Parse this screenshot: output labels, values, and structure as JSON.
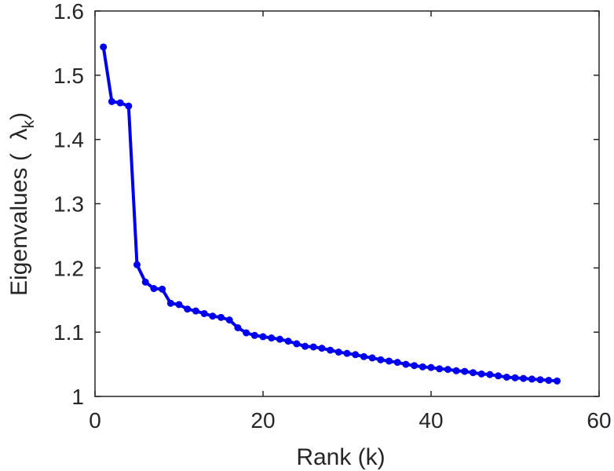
{
  "chart_data": {
    "type": "line",
    "title": "",
    "xlabel": "Rank (k)",
    "ylabel": "Eigenvalues (  λk)",
    "ylabel_parts": {
      "before": "Eigenvalues (  ",
      "symbol": "λ",
      "subscript": "k",
      "after": ")"
    },
    "xlim": [
      0,
      60
    ],
    "ylim": [
      1,
      1.6
    ],
    "xticks": [
      0,
      20,
      40,
      60
    ],
    "yticks": [
      1,
      1.1,
      1.2,
      1.3,
      1.4,
      1.5,
      1.6
    ],
    "xtick_labels": [
      "0",
      "20",
      "40",
      "60"
    ],
    "ytick_labels": [
      "1",
      "1.1",
      "1.2",
      "1.3",
      "1.4",
      "1.5",
      "1.6"
    ],
    "grid": false,
    "series": [
      {
        "color": "#0000ee",
        "marker": "circle",
        "points": [
          [
            1,
            1.544
          ],
          [
            2,
            1.459
          ],
          [
            3,
            1.457
          ],
          [
            4,
            1.452
          ],
          [
            5,
            1.205
          ],
          [
            6,
            1.178
          ],
          [
            7,
            1.168
          ],
          [
            8,
            1.167
          ],
          [
            9,
            1.145
          ],
          [
            10,
            1.143
          ],
          [
            11,
            1.136
          ],
          [
            12,
            1.133
          ],
          [
            13,
            1.129
          ],
          [
            14,
            1.125
          ],
          [
            15,
            1.123
          ],
          [
            16,
            1.119
          ],
          [
            17,
            1.107
          ],
          [
            18,
            1.099
          ],
          [
            19,
            1.095
          ],
          [
            20,
            1.093
          ],
          [
            21,
            1.091
          ],
          [
            22,
            1.089
          ],
          [
            23,
            1.086
          ],
          [
            24,
            1.082
          ],
          [
            25,
            1.078
          ],
          [
            26,
            1.077
          ],
          [
            27,
            1.075
          ],
          [
            28,
            1.072
          ],
          [
            29,
            1.069
          ],
          [
            30,
            1.067
          ],
          [
            31,
            1.065
          ],
          [
            32,
            1.062
          ],
          [
            33,
            1.06
          ],
          [
            34,
            1.057
          ],
          [
            35,
            1.055
          ],
          [
            36,
            1.053
          ],
          [
            37,
            1.05
          ],
          [
            38,
            1.048
          ],
          [
            39,
            1.046
          ],
          [
            40,
            1.045
          ],
          [
            41,
            1.043
          ],
          [
            42,
            1.042
          ],
          [
            43,
            1.04
          ],
          [
            44,
            1.039
          ],
          [
            45,
            1.037
          ],
          [
            46,
            1.035
          ],
          [
            47,
            1.034
          ],
          [
            48,
            1.032
          ],
          [
            49,
            1.03
          ],
          [
            50,
            1.029
          ],
          [
            51,
            1.028
          ],
          [
            52,
            1.027
          ],
          [
            53,
            1.026
          ],
          [
            54,
            1.025
          ],
          [
            55,
            1.024
          ]
        ]
      }
    ]
  }
}
